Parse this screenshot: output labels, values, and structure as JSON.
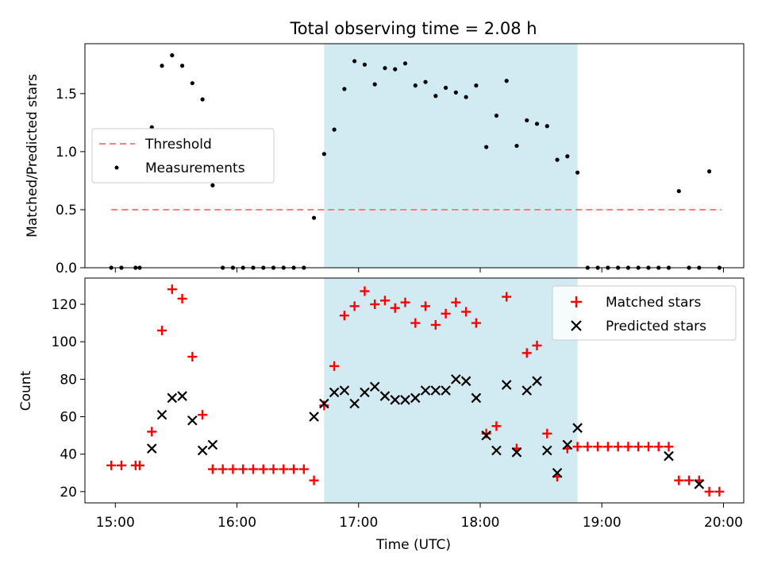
{
  "chart_data": [
    {
      "type": "scatter",
      "title": "Total observing time = 2.08 h",
      "xlabel": "",
      "ylabel": "Matched/Predicted stars",
      "xlim": [
        "14:45",
        "20:10"
      ],
      "ylim": [
        0,
        1.93
      ],
      "y_ticks": [
        0.0,
        0.5,
        1.0,
        1.5
      ],
      "y_tick_labels": [
        "0.0",
        "0.5",
        "1.0",
        "1.5"
      ],
      "legend": {
        "placement": "center-left",
        "entries": [
          "Threshold",
          "Measurements"
        ]
      },
      "shaded_region": {
        "x_start": "16:43",
        "x_end": "18:48",
        "color": "#add8e6"
      },
      "threshold": {
        "name": "Threshold",
        "y": 0.5,
        "x_start": "14:58",
        "x_end": "19:59",
        "color": "#ff7f7f",
        "style": "dashed"
      },
      "series": [
        {
          "name": "Measurements",
          "color": "#000000",
          "marker": "dot",
          "x": [
            "14:58",
            "15:03",
            "15:10",
            "15:12",
            "15:18",
            "15:23",
            "15:28",
            "15:33",
            "15:38",
            "15:43",
            "15:48",
            "15:53",
            "15:58",
            "16:03",
            "16:08",
            "16:13",
            "16:18",
            "16:23",
            "16:28",
            "16:33",
            "16:38",
            "16:43",
            "16:48",
            "16:53",
            "16:58",
            "17:03",
            "17:08",
            "17:13",
            "17:18",
            "17:23",
            "17:28",
            "17:33",
            "17:38",
            "17:43",
            "17:48",
            "17:53",
            "17:58",
            "18:03",
            "18:08",
            "18:13",
            "18:18",
            "18:23",
            "18:28",
            "18:33",
            "18:38",
            "18:43",
            "18:48",
            "18:53",
            "18:58",
            "19:03",
            "19:08",
            "19:13",
            "19:18",
            "19:23",
            "19:28",
            "19:33",
            "19:38",
            "19:43",
            "19:48",
            "19:53",
            "19:58"
          ],
          "y": [
            0.0,
            0.0,
            0.0,
            0.0,
            1.21,
            1.74,
            1.83,
            1.74,
            1.59,
            1.45,
            0.71,
            0.0,
            0.0,
            0.0,
            0.0,
            0.0,
            0.0,
            0.0,
            0.0,
            0.0,
            0.43,
            0.98,
            1.19,
            1.54,
            1.78,
            1.75,
            1.58,
            1.72,
            1.71,
            1.76,
            1.57,
            1.6,
            1.48,
            1.55,
            1.51,
            1.47,
            1.57,
            1.04,
            1.31,
            1.61,
            1.05,
            1.27,
            1.24,
            1.22,
            0.93,
            0.96,
            0.82,
            0.0,
            0.0,
            0.0,
            0.0,
            0.0,
            0.0,
            0.0,
            0.0,
            0.0,
            0.66,
            0.0,
            0.0,
            0.83,
            0.0
          ]
        }
      ]
    },
    {
      "type": "scatter",
      "title": "",
      "xlabel": "Time (UTC)",
      "ylabel": "Count",
      "xlim": [
        "14:45",
        "20:10"
      ],
      "ylim": [
        14,
        134
      ],
      "x_tick_labels": [
        "15:00",
        "16:00",
        "17:00",
        "18:00",
        "19:00",
        "20:00"
      ],
      "y_ticks": [
        20,
        40,
        60,
        80,
        100,
        120
      ],
      "y_tick_labels": [
        "20",
        "40",
        "60",
        "80",
        "100",
        "120"
      ],
      "legend": {
        "placement": "top-right",
        "entries": [
          "Matched stars",
          "Predicted stars"
        ]
      },
      "shaded_region": {
        "x_start": "16:43",
        "x_end": "18:48",
        "color": "#add8e6"
      },
      "series": [
        {
          "name": "Matched stars",
          "color": "#ff0000",
          "marker": "plus",
          "x": [
            "14:58",
            "15:03",
            "15:10",
            "15:12",
            "15:18",
            "15:23",
            "15:28",
            "15:33",
            "15:38",
            "15:43",
            "15:48",
            "15:53",
            "15:58",
            "16:03",
            "16:08",
            "16:13",
            "16:18",
            "16:23",
            "16:28",
            "16:33",
            "16:38",
            "16:43",
            "16:48",
            "16:53",
            "16:58",
            "17:03",
            "17:08",
            "17:13",
            "17:18",
            "17:23",
            "17:28",
            "17:33",
            "17:38",
            "17:43",
            "17:48",
            "17:53",
            "17:58",
            "18:03",
            "18:08",
            "18:13",
            "18:18",
            "18:23",
            "18:28",
            "18:33",
            "18:38",
            "18:43",
            "18:48",
            "18:53",
            "18:58",
            "19:03",
            "19:08",
            "19:13",
            "19:18",
            "19:23",
            "19:28",
            "19:33",
            "19:38",
            "19:43",
            "19:48",
            "19:53",
            "19:58"
          ],
          "y": [
            34,
            34,
            34,
            34,
            52,
            106,
            128,
            123,
            92,
            61,
            32,
            32,
            32,
            32,
            32,
            32,
            32,
            32,
            32,
            32,
            26,
            66,
            87,
            114,
            119,
            127,
            120,
            122,
            118,
            121,
            110,
            119,
            109,
            115,
            121,
            116,
            110,
            51,
            55,
            124,
            43,
            94,
            98,
            51,
            28,
            43,
            44,
            44,
            44,
            44,
            44,
            44,
            44,
            44,
            44,
            44,
            26,
            26,
            26,
            20,
            20
          ]
        },
        {
          "name": "Predicted stars",
          "color": "#000000",
          "marker": "x",
          "x": [
            "15:18",
            "15:23",
            "15:28",
            "15:33",
            "15:38",
            "15:43",
            "15:48",
            "16:38",
            "16:43",
            "16:48",
            "16:53",
            "16:58",
            "17:03",
            "17:08",
            "17:13",
            "17:18",
            "17:23",
            "17:28",
            "17:33",
            "17:38",
            "17:43",
            "17:48",
            "17:53",
            "17:58",
            "18:03",
            "18:08",
            "18:13",
            "18:18",
            "18:23",
            "18:28",
            "18:33",
            "18:38",
            "18:43",
            "18:48",
            "19:33",
            "19:48"
          ],
          "y": [
            43,
            61,
            70,
            71,
            58,
            42,
            45,
            60,
            67,
            73,
            74,
            67,
            73,
            76,
            71,
            69,
            69,
            70,
            74,
            74,
            74,
            80,
            79,
            70,
            50,
            42,
            77,
            41,
            74,
            79,
            42,
            30,
            45,
            54,
            39,
            24
          ]
        }
      ]
    }
  ]
}
